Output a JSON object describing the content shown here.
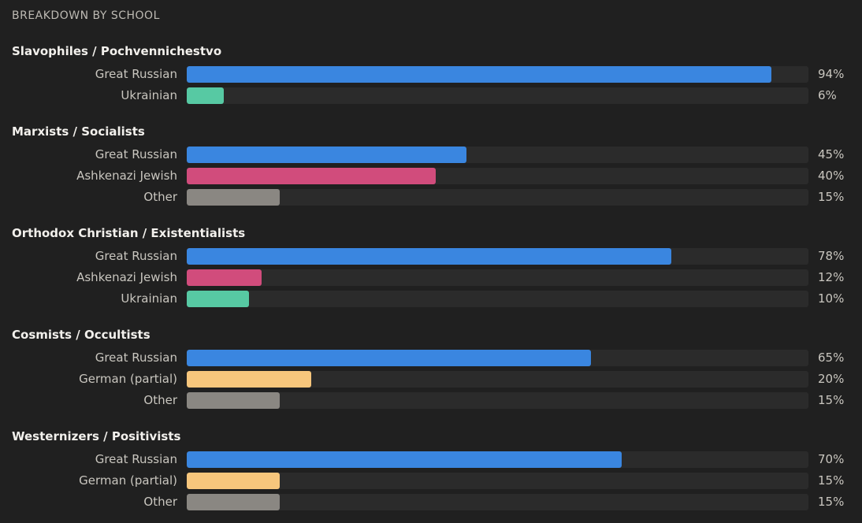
{
  "header": {
    "title": "BREAKDOWN BY SCHOOL"
  },
  "colors": {
    "Great Russian": "#3a86e0",
    "Ukrainian": "#57c9a3",
    "Ashkenazi Jewish": "#d14c7c",
    "Other": "#8a8782",
    "German (partial)": "#f7c67c"
  },
  "chart_data": {
    "type": "bar",
    "orientation": "horizontal",
    "title": "BREAKDOWN BY SCHOOL",
    "xlim": [
      0,
      100
    ],
    "unit": "%",
    "groups": [
      {
        "name": "Slavophiles / Pochvennichestvo",
        "rows": [
          {
            "label": "Great Russian",
            "value": 94,
            "display": "94%"
          },
          {
            "label": "Ukrainian",
            "value": 6,
            "display": "6%"
          }
        ]
      },
      {
        "name": "Marxists / Socialists",
        "rows": [
          {
            "label": "Great Russian",
            "value": 45,
            "display": "45%"
          },
          {
            "label": "Ashkenazi Jewish",
            "value": 40,
            "display": "40%"
          },
          {
            "label": "Other",
            "value": 15,
            "display": "15%"
          }
        ]
      },
      {
        "name": "Orthodox Christian / Existentialists",
        "rows": [
          {
            "label": "Great Russian",
            "value": 78,
            "display": "78%"
          },
          {
            "label": "Ashkenazi Jewish",
            "value": 12,
            "display": "12%"
          },
          {
            "label": "Ukrainian",
            "value": 10,
            "display": "10%"
          }
        ]
      },
      {
        "name": "Cosmists / Occultists",
        "rows": [
          {
            "label": "Great Russian",
            "value": 65,
            "display": "65%"
          },
          {
            "label": "German (partial)",
            "value": 20,
            "display": "20%"
          },
          {
            "label": "Other",
            "value": 15,
            "display": "15%"
          }
        ]
      },
      {
        "name": "Westernizers / Positivists",
        "rows": [
          {
            "label": "Great Russian",
            "value": 70,
            "display": "70%"
          },
          {
            "label": "German (partial)",
            "value": 15,
            "display": "15%"
          },
          {
            "label": "Other",
            "value": 15,
            "display": "15%"
          }
        ]
      }
    ]
  }
}
